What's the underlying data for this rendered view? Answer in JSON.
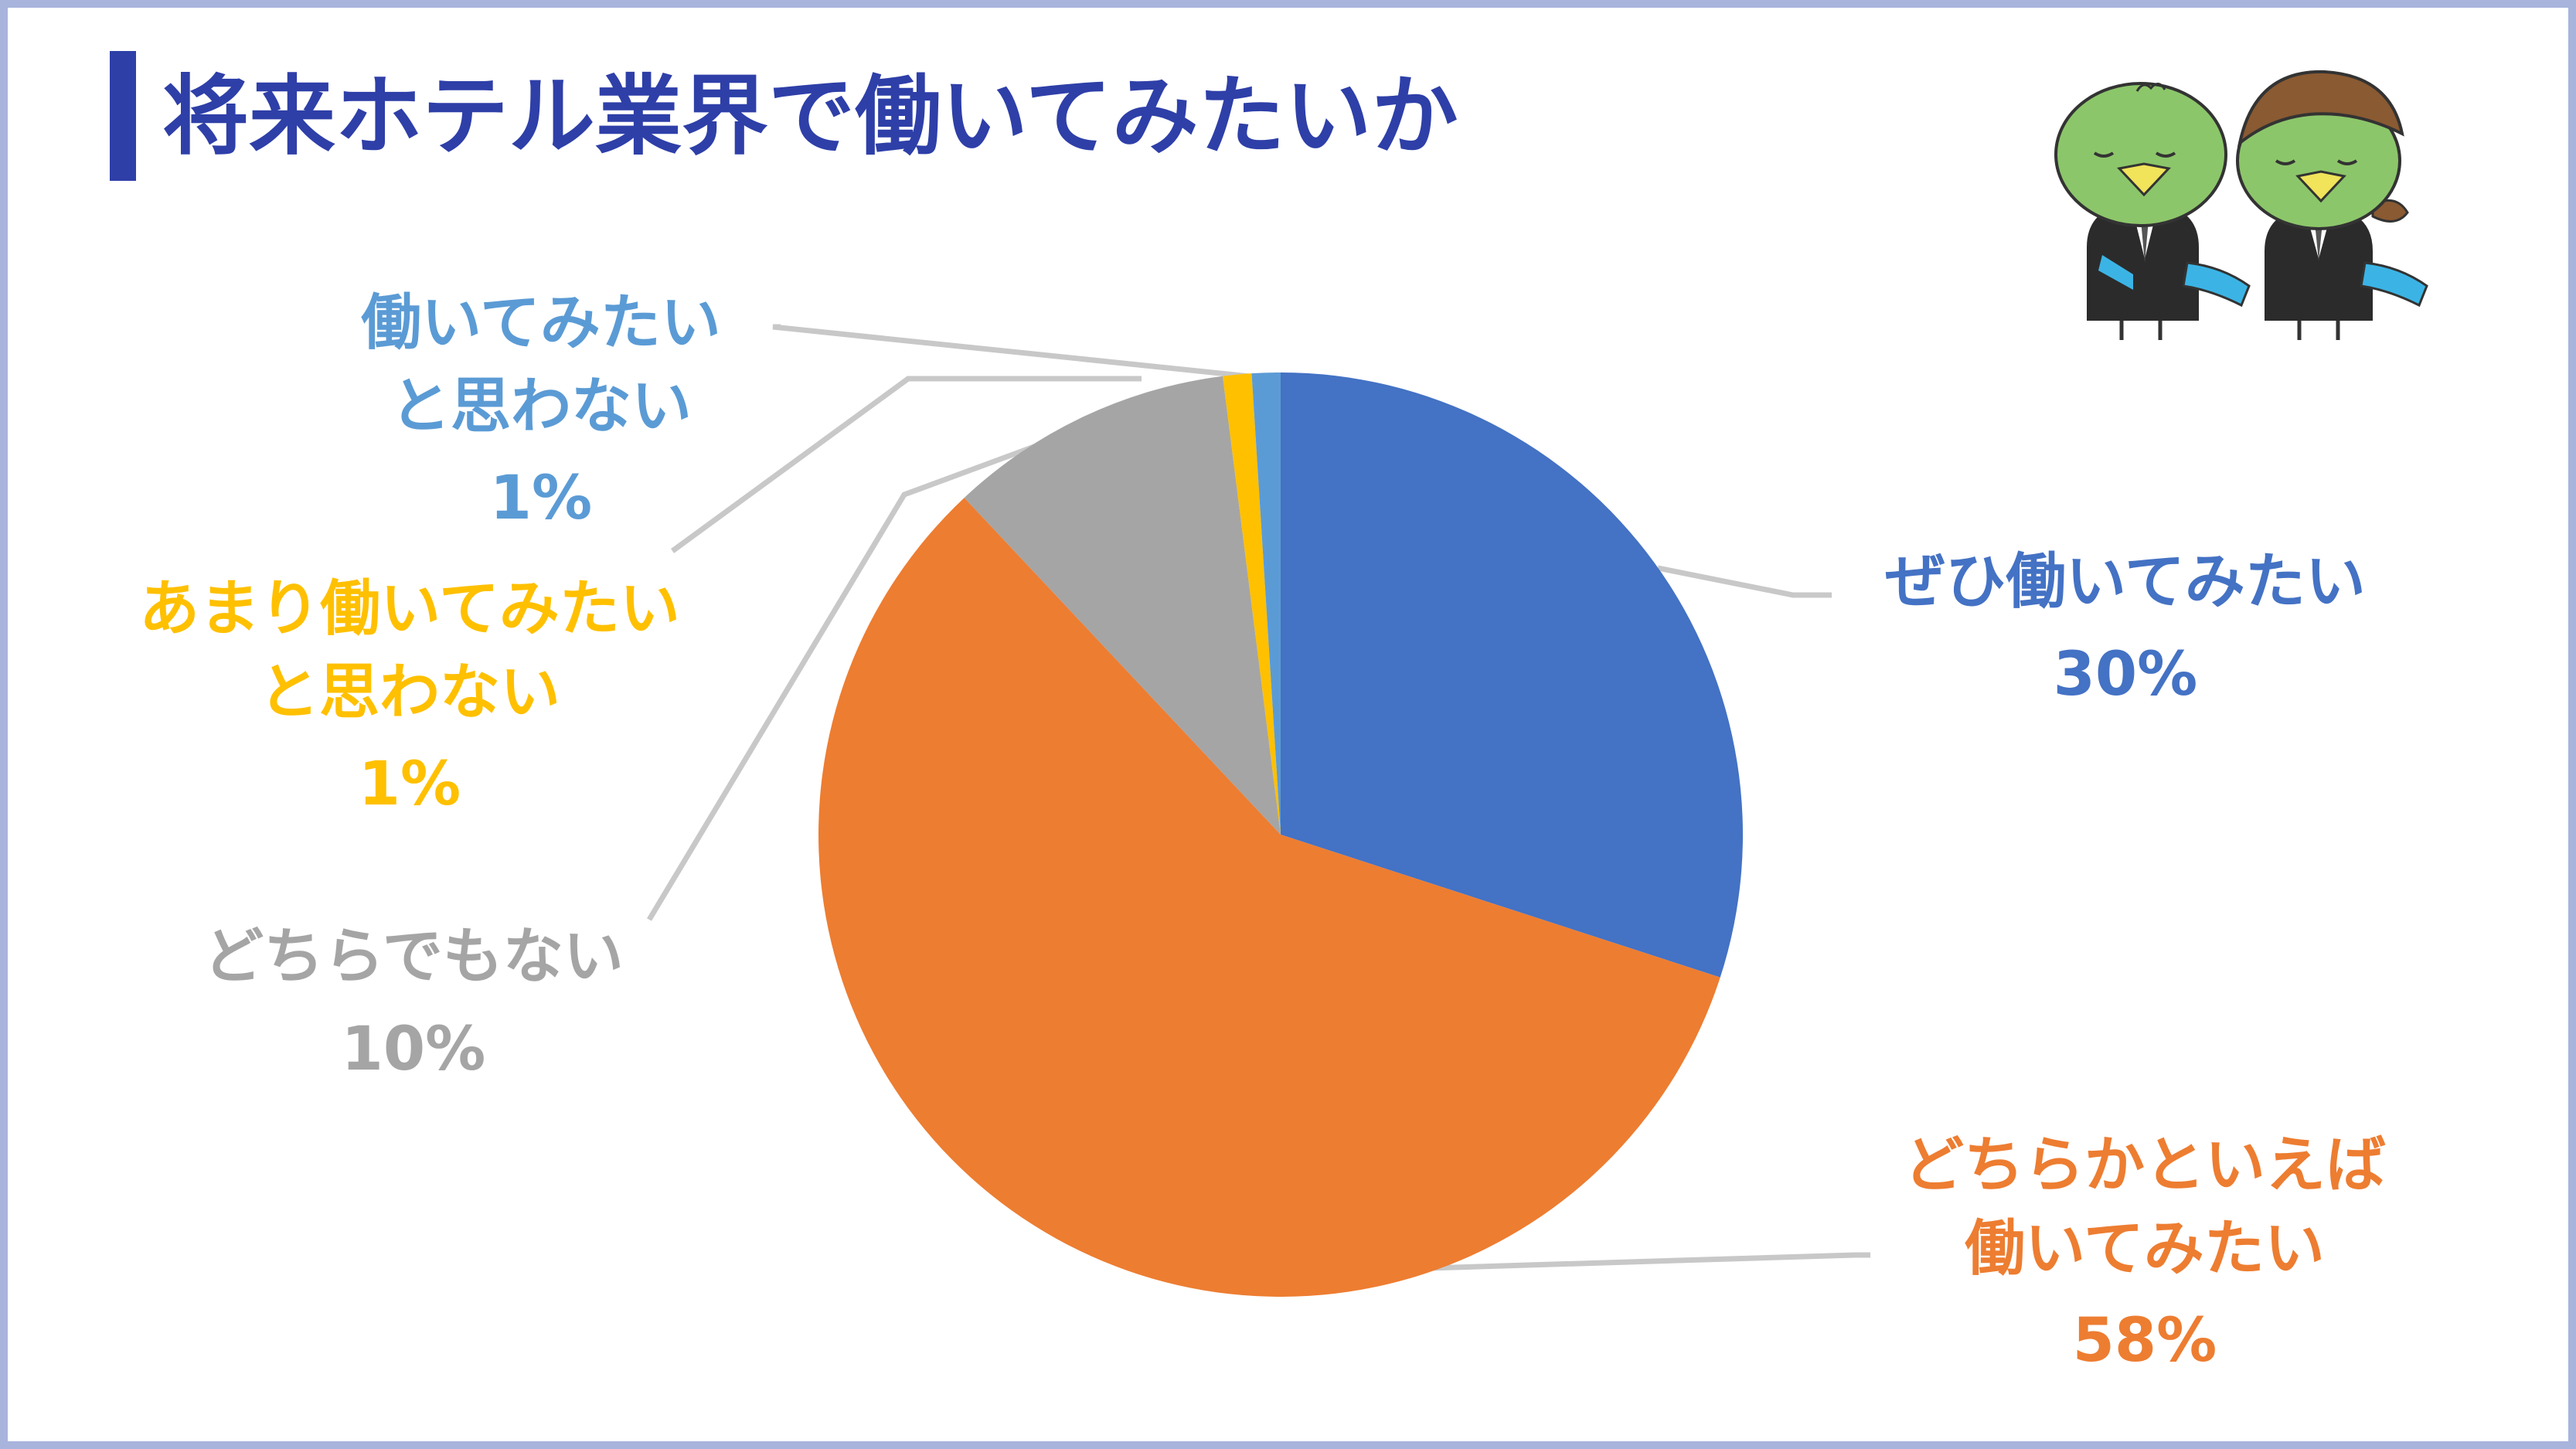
{
  "title": "将来ホテル業界で働いてみたいか",
  "colors": {
    "accent": "#2e3fa8",
    "frame": "#a8b4dc",
    "leader": "#c8c8c8"
  },
  "chart_data": {
    "type": "pie",
    "title": "将来ホテル業界で働いてみたいか",
    "start_angle_deg": 0,
    "direction": "clockwise",
    "slices": [
      {
        "name": "ぜひ働いてみたい",
        "value": 30,
        "pct": "30%",
        "color": "#4472c4",
        "lines": [
          "ぜひ働いてみたい"
        ]
      },
      {
        "name": "どちらかといえば働いてみたい",
        "value": 58,
        "pct": "58%",
        "color": "#ed7d31",
        "lines": [
          "どちらかといえば",
          "働いてみたい"
        ]
      },
      {
        "name": "どちらでもない",
        "value": 10,
        "pct": "10%",
        "color": "#a5a5a5",
        "lines": [
          "どちらでもない"
        ]
      },
      {
        "name": "あまり働いてみたいと思わない",
        "value": 1,
        "pct": "1%",
        "color": "#ffc000",
        "lines": [
          "あまり働いてみたい",
          "と思わない"
        ]
      },
      {
        "name": "働いてみたいと思わない",
        "value": 1,
        "pct": "1%",
        "color": "#5b9bd5",
        "lines": [
          "働いてみたい",
          "と思わない"
        ]
      }
    ]
  },
  "illustration": {
    "name": "mascot-pair",
    "icons": [
      "kappa-mascot-male",
      "kappa-mascot-female"
    ]
  }
}
